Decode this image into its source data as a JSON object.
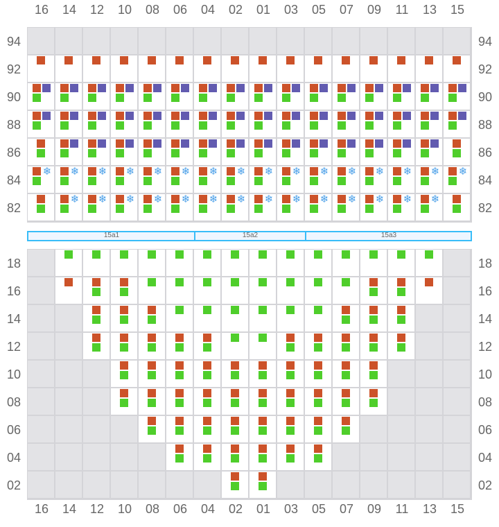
{
  "columns": [
    "16",
    "14",
    "12",
    "10",
    "08",
    "06",
    "04",
    "02",
    "01",
    "03",
    "05",
    "07",
    "09",
    "11",
    "13",
    "15"
  ],
  "legend_codes": {
    "x": "unavailable",
    "o": "orange-square",
    "p": "purple-square",
    "g": "green-square",
    "s": "snowflake-icon"
  },
  "colors": {
    "orange": "#cc5229",
    "purple": "#625bb0",
    "green": "#4fce2b",
    "unavailable": "#e3e3e6",
    "grid": "#d4d4d8",
    "section_bar": "#38bdf8",
    "snowflake": "#4a9fe8"
  },
  "top_block": {
    "rows": [
      {
        "label": "94",
        "cells": [
          "x",
          "x",
          "x",
          "x",
          "x",
          "x",
          "x",
          "x",
          "x",
          "x",
          "x",
          "x",
          "x",
          "x",
          "x",
          "x"
        ]
      },
      {
        "label": "92",
        "cells": [
          "o",
          "o",
          "o",
          "o",
          "o",
          "o",
          "o",
          "o",
          "o",
          "o",
          "o",
          "o",
          "o",
          "o",
          "o",
          "o"
        ]
      },
      {
        "label": "90",
        "cells": [
          "opg",
          "opg",
          "opg",
          "opg",
          "opg",
          "opg",
          "opg",
          "opg",
          "opg",
          "opg",
          "opg",
          "opg",
          "opg",
          "opg",
          "opg",
          "opg"
        ]
      },
      {
        "label": "88",
        "cells": [
          "opg",
          "opg",
          "opg",
          "opg",
          "opg",
          "opg",
          "opg",
          "opg",
          "opg",
          "opg",
          "opg",
          "opg",
          "opg",
          "opg",
          "opg",
          "opg"
        ]
      },
      {
        "label": "86",
        "cells": [
          "og",
          "opg",
          "opg",
          "opg",
          "opg",
          "opg",
          "opg",
          "opg",
          "opg",
          "opg",
          "opg",
          "opg",
          "opg",
          "opg",
          "opg",
          "og"
        ]
      },
      {
        "label": "84",
        "cells": [
          "osg",
          "osg",
          "osg",
          "osg",
          "osg",
          "osg",
          "osg",
          "osg",
          "osg",
          "osg",
          "osg",
          "osg",
          "osg",
          "osg",
          "osg",
          "osg"
        ]
      },
      {
        "label": "82",
        "cells": [
          "og",
          "osg",
          "osg",
          "osg",
          "osg",
          "osg",
          "osg",
          "osg",
          "osg",
          "osg",
          "osg",
          "osg",
          "osg",
          "osg",
          "osg",
          "og"
        ]
      }
    ]
  },
  "sections": [
    {
      "label": "15a1",
      "span": 6
    },
    {
      "label": "15a2",
      "span": 4
    },
    {
      "label": "15a3",
      "span": 6
    }
  ],
  "bottom_block": {
    "rows": [
      {
        "label": "18",
        "cells": [
          "x",
          "g",
          "g",
          "g",
          "g",
          "g",
          "g",
          "g",
          "g",
          "g",
          "g",
          "g",
          "g",
          "g",
          "g",
          "x"
        ]
      },
      {
        "label": "16",
        "cells": [
          "x",
          "o",
          "og",
          "og",
          "g",
          "g",
          "g",
          "g",
          "g",
          "g",
          "g",
          "g",
          "og",
          "og",
          "o",
          "x"
        ]
      },
      {
        "label": "14",
        "cells": [
          "x",
          "x",
          "og",
          "og",
          "og",
          "g",
          "g",
          "g",
          "g",
          "g",
          "g",
          "og",
          "og",
          "og",
          "x",
          "x"
        ]
      },
      {
        "label": "12",
        "cells": [
          "x",
          "x",
          "og",
          "og",
          "og",
          "og",
          "og",
          "g",
          "g",
          "og",
          "og",
          "og",
          "og",
          "og",
          "x",
          "x"
        ]
      },
      {
        "label": "10",
        "cells": [
          "x",
          "x",
          "x",
          "og",
          "og",
          "og",
          "og",
          "og",
          "og",
          "og",
          "og",
          "og",
          "og",
          "x",
          "x",
          "x"
        ]
      },
      {
        "label": "08",
        "cells": [
          "x",
          "x",
          "x",
          "og",
          "og",
          "og",
          "og",
          "og",
          "og",
          "og",
          "og",
          "og",
          "og",
          "x",
          "x",
          "x"
        ]
      },
      {
        "label": "06",
        "cells": [
          "x",
          "x",
          "x",
          "x",
          "og",
          "og",
          "og",
          "og",
          "og",
          "og",
          "og",
          "og",
          "x",
          "x",
          "x",
          "x"
        ]
      },
      {
        "label": "04",
        "cells": [
          "x",
          "x",
          "x",
          "x",
          "x",
          "og",
          "og",
          "og",
          "og",
          "og",
          "og",
          "x",
          "x",
          "x",
          "x",
          "x"
        ]
      },
      {
        "label": "02",
        "cells": [
          "x",
          "x",
          "x",
          "x",
          "x",
          "x",
          "x",
          "og",
          "og",
          "x",
          "x",
          "x",
          "x",
          "x",
          "x",
          "x"
        ]
      }
    ]
  }
}
